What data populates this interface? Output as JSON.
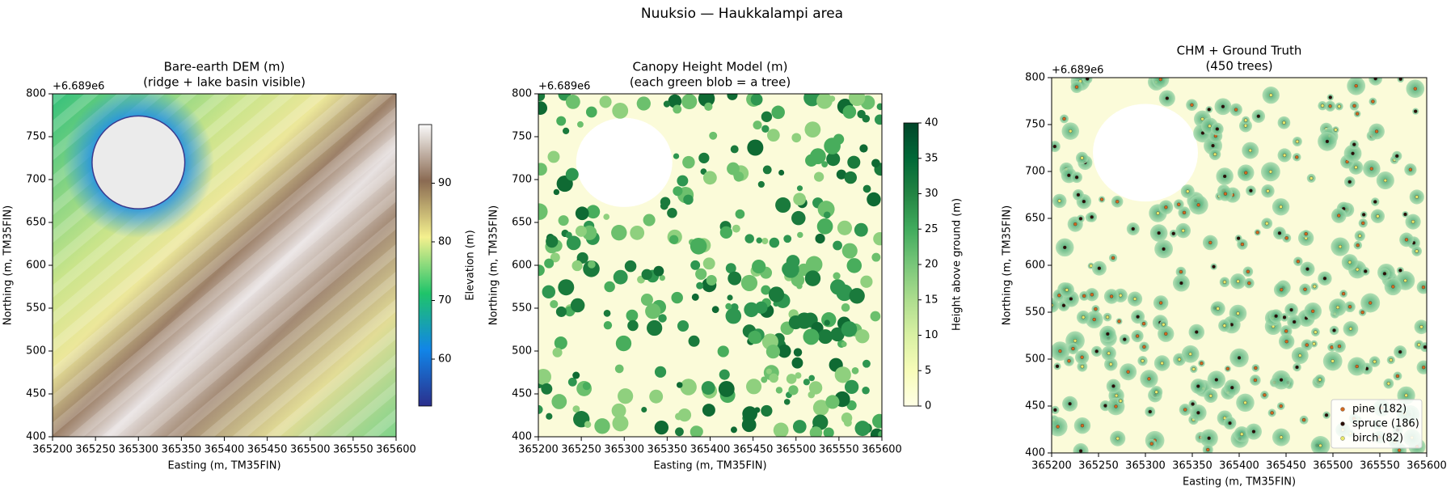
{
  "title": "Nuuksio — Haukkalampi area",
  "chart_data": [
    {
      "type": "dem",
      "title": "Bare-earth DEM (m)",
      "subtitle": "(ridge + lake basin visible)",
      "x_label": "Easting (m, TM35FIN)",
      "y_label": "Northing (m, TM35FIN)",
      "y_offset_label": "+6.689e6",
      "xlim": [
        365200,
        365600
      ],
      "xticks": [
        365200,
        365250,
        365300,
        365350,
        365400,
        365450,
        365500,
        365550,
        365600
      ],
      "ylim": [
        400,
        800
      ],
      "yticks": [
        400,
        450,
        500,
        550,
        600,
        650,
        700,
        750,
        800
      ],
      "colorbar": {
        "label": "Elevation (m)",
        "lim": [
          52,
          100
        ],
        "ticks": [
          60,
          70,
          80,
          90
        ],
        "colors": [
          "#2b2f8c",
          "#1185e8",
          "#1fc46a",
          "#f4f08e",
          "#8a6a52",
          "#fafafa"
        ]
      }
    },
    {
      "type": "chm",
      "title": "Canopy Height Model (m)",
      "subtitle": "(each green blob = a tree)",
      "x_label": "Easting (m, TM35FIN)",
      "y_label": "Northing (m, TM35FIN)",
      "y_offset_label": "+6.689e6",
      "xlim": [
        365200,
        365600
      ],
      "xticks": [
        365200,
        365250,
        365300,
        365350,
        365400,
        365450,
        365500,
        365550,
        365600
      ],
      "ylim": [
        400,
        800
      ],
      "yticks": [
        400,
        450,
        500,
        550,
        600,
        650,
        700,
        750,
        800
      ],
      "colorbar": {
        "label": "Height above ground (m)",
        "lim": [
          0,
          40
        ],
        "ticks": [
          0,
          5,
          10,
          15,
          20,
          25,
          30,
          35,
          40
        ],
        "colors": [
          "#ffffe5",
          "#f7fcb9",
          "#d9f0a3",
          "#addd8e",
          "#78c679",
          "#41ab5d",
          "#238443",
          "#006837",
          "#004529"
        ]
      }
    },
    {
      "type": "scatter",
      "title": "CHM + Ground Truth",
      "subtitle": "(450 trees)",
      "x_label": "Easting (m, TM35FIN)",
      "y_label": "Northing (m, TM35FIN)",
      "y_offset_label": "+6.689e6",
      "xlim": [
        365200,
        365600
      ],
      "xticks": [
        365200,
        365250,
        365300,
        365350,
        365400,
        365450,
        365500,
        365550,
        365600
      ],
      "ylim": [
        400,
        800
      ],
      "yticks": [
        400,
        450,
        500,
        550,
        600,
        650,
        700,
        750,
        800
      ],
      "legend": "lower right",
      "series": [
        {
          "name": "pine (182)",
          "color": "#d2691e"
        },
        {
          "name": "spruce (186)",
          "color": "#2a0e05"
        },
        {
          "name": "birch (82)",
          "color": "#e8e86a"
        }
      ]
    }
  ]
}
